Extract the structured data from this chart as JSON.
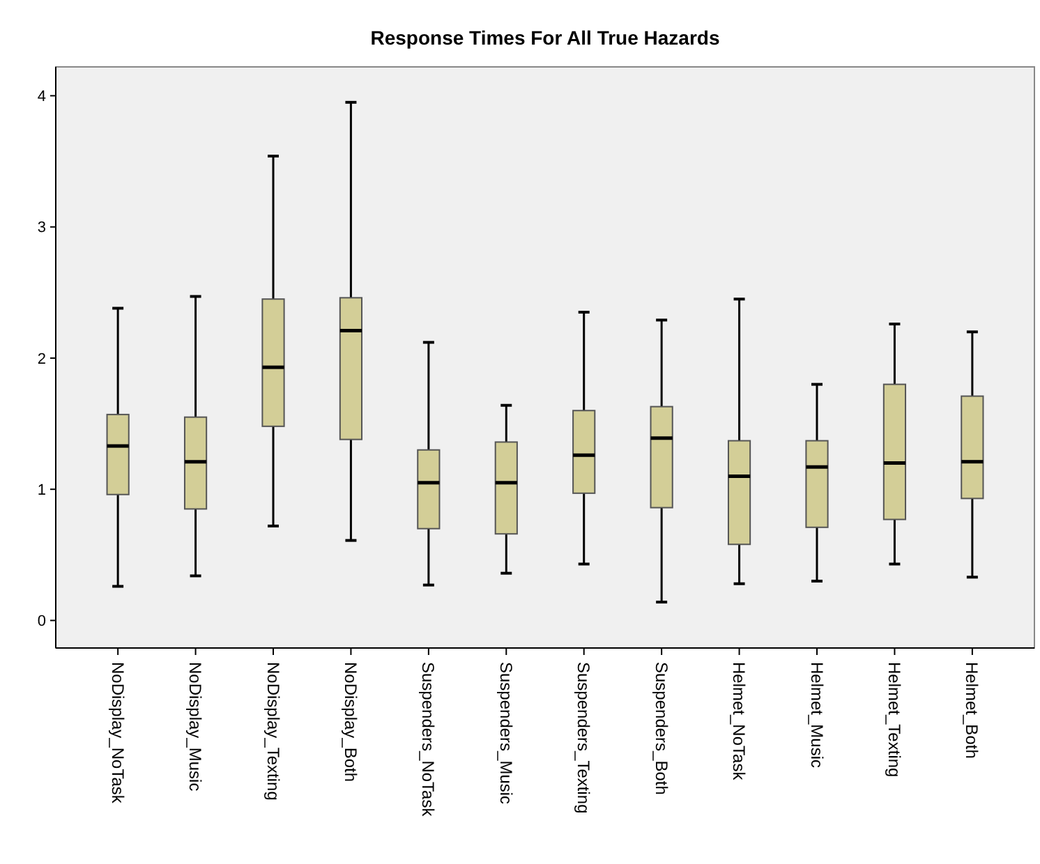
{
  "chart_data": {
    "type": "box",
    "title": "Response Times For All True Hazards",
    "categories": [
      "NoDisplay_NoTask",
      "NoDisplay_Music",
      "NoDisplay_Texting",
      "NoDisplay_Both",
      "Suspenders_NoTask",
      "Suspenders_Music",
      "Suspenders_Texting",
      "Suspenders_Both",
      "Helmet_NoTask",
      "Helmet_Music",
      "Helmet_Texting",
      "Helmet_Both"
    ],
    "color": "#d3ce97",
    "boxes": [
      {
        "low": 0.26,
        "q1": 0.96,
        "median": 1.33,
        "q3": 1.57,
        "high": 2.38
      },
      {
        "low": 0.34,
        "q1": 0.85,
        "median": 1.21,
        "q3": 1.55,
        "high": 2.47
      },
      {
        "low": 0.72,
        "q1": 1.48,
        "median": 1.93,
        "q3": 2.45,
        "high": 3.54
      },
      {
        "low": 0.61,
        "q1": 1.38,
        "median": 2.21,
        "q3": 2.46,
        "high": 3.95
      },
      {
        "low": 0.27,
        "q1": 0.7,
        "median": 1.05,
        "q3": 1.3,
        "high": 2.12
      },
      {
        "low": 0.36,
        "q1": 0.66,
        "median": 1.05,
        "q3": 1.36,
        "high": 1.64
      },
      {
        "low": 0.43,
        "q1": 0.97,
        "median": 1.26,
        "q3": 1.6,
        "high": 2.35
      },
      {
        "low": 0.14,
        "q1": 0.86,
        "median": 1.39,
        "q3": 1.63,
        "high": 2.29
      },
      {
        "low": 0.28,
        "q1": 0.58,
        "median": 1.1,
        "q3": 1.37,
        "high": 2.45
      },
      {
        "low": 0.3,
        "q1": 0.71,
        "median": 1.17,
        "q3": 1.37,
        "high": 1.8
      },
      {
        "low": 0.43,
        "q1": 0.77,
        "median": 1.2,
        "q3": 1.8,
        "high": 2.26
      },
      {
        "low": 0.33,
        "q1": 0.93,
        "median": 1.21,
        "q3": 1.71,
        "high": 2.2
      }
    ],
    "ylim": [
      -0.21,
      4.22
    ],
    "yticks": [
      0,
      1,
      2,
      3,
      4
    ],
    "grid": false
  }
}
